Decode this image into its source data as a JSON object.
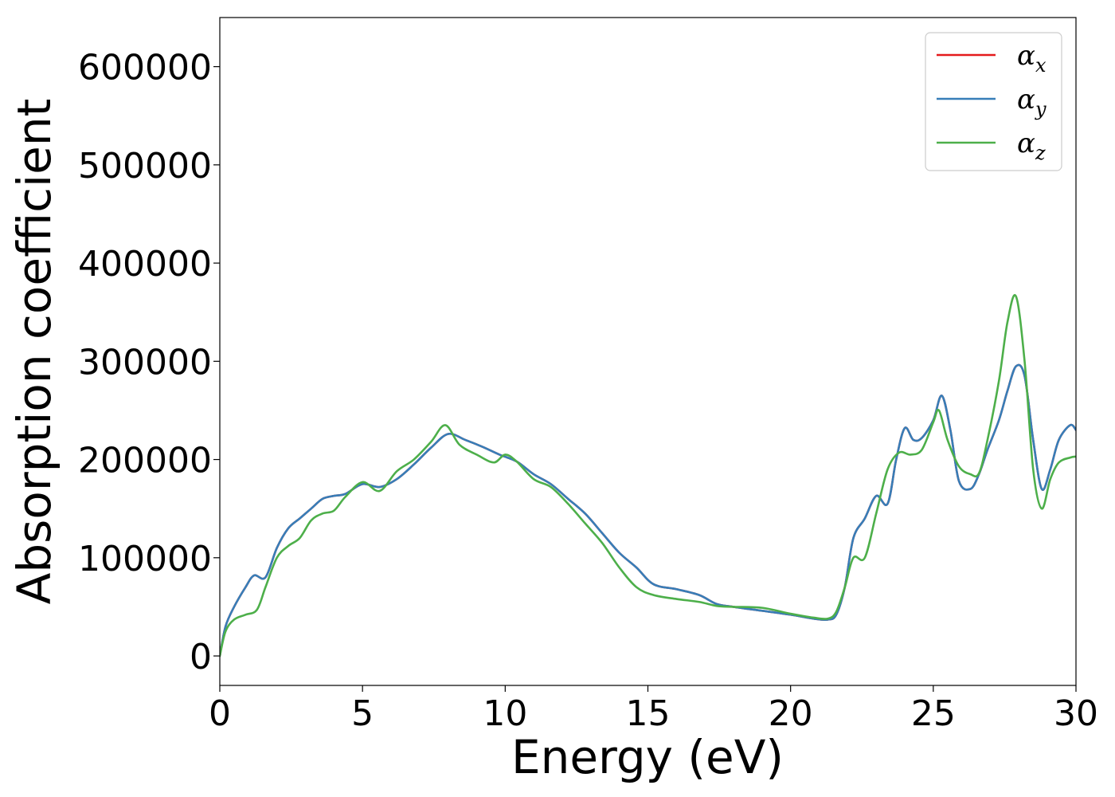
{
  "chart_data": {
    "type": "line",
    "title": "",
    "xlabel": "Energy (eV)",
    "ylabel": "Absorption coefficient",
    "xlim": [
      0,
      30
    ],
    "ylim": [
      -30000,
      650000
    ],
    "xticks": [
      0,
      5,
      10,
      15,
      20,
      25,
      30
    ],
    "xtick_labels": [
      "0",
      "5",
      "10",
      "15",
      "20",
      "25",
      "30"
    ],
    "yticks": [
      0,
      100000,
      200000,
      300000,
      400000,
      500000,
      600000
    ],
    "ytick_labels": [
      "0",
      "100000",
      "200000",
      "300000",
      "400000",
      "500000",
      "600000"
    ],
    "grid": false,
    "legend_position": "top-right",
    "series": [
      {
        "name": "αx",
        "legend_base": "α",
        "legend_sub": "x",
        "color": "#e41a1c",
        "x": [
          0,
          0.2,
          0.5,
          0.9,
          1.2,
          1.6,
          2.0,
          2.4,
          2.8,
          3.2,
          3.6,
          4.0,
          4.4,
          5.0,
          5.6,
          6.2,
          6.8,
          7.4,
          8.0,
          8.6,
          9.2,
          9.8,
          10.4,
          11.0,
          11.6,
          12.2,
          12.8,
          13.4,
          14.0,
          14.6,
          15.2,
          16.0,
          16.8,
          17.4,
          18.0,
          19.0,
          20.0,
          20.8,
          21.3,
          21.6,
          21.9,
          22.2,
          22.6,
          23.0,
          23.4,
          23.7,
          24.0,
          24.3,
          24.6,
          25.0,
          25.3,
          25.6,
          25.9,
          26.3,
          26.6,
          26.9,
          27.3,
          27.6,
          27.9,
          28.2,
          28.5,
          28.8,
          29.1,
          29.4,
          29.8,
          30.0
        ],
        "y": [
          0,
          30000,
          50000,
          70000,
          82000,
          80000,
          110000,
          130000,
          140000,
          150000,
          160000,
          163000,
          165000,
          175000,
          172000,
          180000,
          195000,
          212000,
          226000,
          220000,
          213000,
          205000,
          198000,
          185000,
          175000,
          160000,
          145000,
          125000,
          105000,
          90000,
          73000,
          68000,
          62000,
          53000,
          50000,
          46000,
          42000,
          38000,
          37000,
          42000,
          70000,
          120000,
          140000,
          163000,
          155000,
          200000,
          232000,
          220000,
          222000,
          240000,
          265000,
          230000,
          178000,
          170000,
          185000,
          210000,
          240000,
          270000,
          295000,
          285000,
          220000,
          170000,
          190000,
          220000,
          235000,
          230000
        ]
      },
      {
        "name": "αy",
        "legend_base": "α",
        "legend_sub": "y",
        "color": "#377eb8",
        "x": [
          0,
          0.2,
          0.5,
          0.9,
          1.2,
          1.6,
          2.0,
          2.4,
          2.8,
          3.2,
          3.6,
          4.0,
          4.4,
          5.0,
          5.6,
          6.2,
          6.8,
          7.4,
          8.0,
          8.6,
          9.2,
          9.8,
          10.4,
          11.0,
          11.6,
          12.2,
          12.8,
          13.4,
          14.0,
          14.6,
          15.2,
          16.0,
          16.8,
          17.4,
          18.0,
          19.0,
          20.0,
          20.8,
          21.3,
          21.6,
          21.9,
          22.2,
          22.6,
          23.0,
          23.4,
          23.7,
          24.0,
          24.3,
          24.6,
          25.0,
          25.3,
          25.6,
          25.9,
          26.3,
          26.6,
          26.9,
          27.3,
          27.6,
          27.9,
          28.2,
          28.5,
          28.8,
          29.1,
          29.4,
          29.8,
          30.0
        ],
        "y": [
          0,
          30000,
          50000,
          70000,
          82000,
          80000,
          110000,
          130000,
          140000,
          150000,
          160000,
          163000,
          165000,
          175000,
          172000,
          180000,
          195000,
          212000,
          226000,
          220000,
          213000,
          205000,
          198000,
          185000,
          175000,
          160000,
          145000,
          125000,
          105000,
          90000,
          73000,
          68000,
          62000,
          53000,
          50000,
          46000,
          42000,
          38000,
          37000,
          42000,
          70000,
          120000,
          140000,
          163000,
          155000,
          200000,
          232000,
          220000,
          222000,
          240000,
          265000,
          230000,
          178000,
          170000,
          185000,
          210000,
          240000,
          270000,
          295000,
          285000,
          220000,
          170000,
          190000,
          220000,
          235000,
          230000
        ]
      },
      {
        "name": "αz",
        "legend_base": "α",
        "legend_sub": "z",
        "color": "#4daf4a",
        "x": [
          0,
          0.2,
          0.5,
          0.9,
          1.3,
          1.6,
          2.0,
          2.4,
          2.8,
          3.2,
          3.6,
          4.0,
          4.4,
          5.0,
          5.6,
          6.2,
          6.8,
          7.4,
          7.9,
          8.4,
          9.0,
          9.6,
          10.0,
          10.4,
          11.0,
          11.6,
          12.2,
          12.8,
          13.4,
          14.0,
          14.6,
          15.2,
          16.0,
          16.8,
          17.4,
          18.0,
          19.0,
          20.0,
          20.8,
          21.3,
          21.6,
          21.9,
          22.2,
          22.6,
          23.0,
          23.4,
          23.8,
          24.2,
          24.6,
          25.0,
          25.2,
          25.5,
          25.9,
          26.3,
          26.6,
          26.9,
          27.3,
          27.6,
          27.9,
          28.2,
          28.5,
          28.8,
          29.1,
          29.4,
          29.8,
          30.0
        ],
        "y": [
          0,
          25000,
          37000,
          42000,
          47000,
          70000,
          100000,
          112000,
          120000,
          138000,
          145000,
          148000,
          162000,
          177000,
          168000,
          188000,
          200000,
          218000,
          235000,
          215000,
          205000,
          197000,
          205000,
          198000,
          180000,
          172000,
          155000,
          135000,
          115000,
          90000,
          70000,
          62000,
          58000,
          55000,
          51000,
          50000,
          49000,
          43000,
          39000,
          38000,
          45000,
          70000,
          100000,
          100000,
          145000,
          190000,
          207000,
          205000,
          210000,
          238000,
          250000,
          220000,
          193000,
          185000,
          186000,
          220000,
          280000,
          340000,
          366000,
          300000,
          190000,
          150000,
          180000,
          197000,
          202000,
          203000
        ]
      }
    ]
  }
}
